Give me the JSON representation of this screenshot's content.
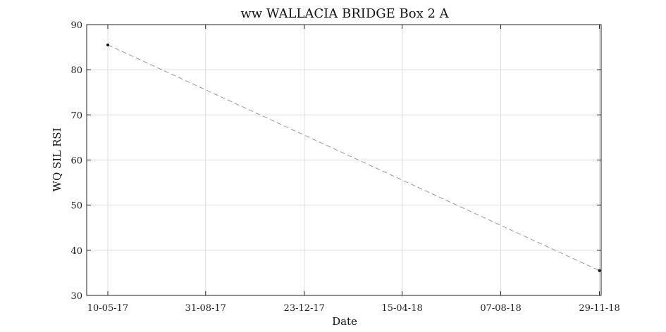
{
  "chart_data": {
    "type": "line",
    "title": "ww WALLACIA BRIDGE Box 2 A",
    "xlabel": "Date",
    "ylabel": "WQ SIL RSI",
    "x_ticks": [
      "10-05-17",
      "31-08-17",
      "23-12-17",
      "15-04-18",
      "07-08-18",
      "29-11-18"
    ],
    "y_ticks": [
      "30",
      "40",
      "50",
      "60",
      "70",
      "80",
      "90"
    ],
    "ylim": [
      30,
      90
    ],
    "xlim": [
      "2017-05-10",
      "2018-12-01"
    ],
    "grid": true,
    "series": [
      {
        "x": [
          "2017-05-10",
          "2018-11-29"
        ],
        "y": [
          85.5,
          35.5
        ],
        "color": "#999999",
        "line_style": "dashed",
        "marker_color": "#111111"
      }
    ]
  }
}
